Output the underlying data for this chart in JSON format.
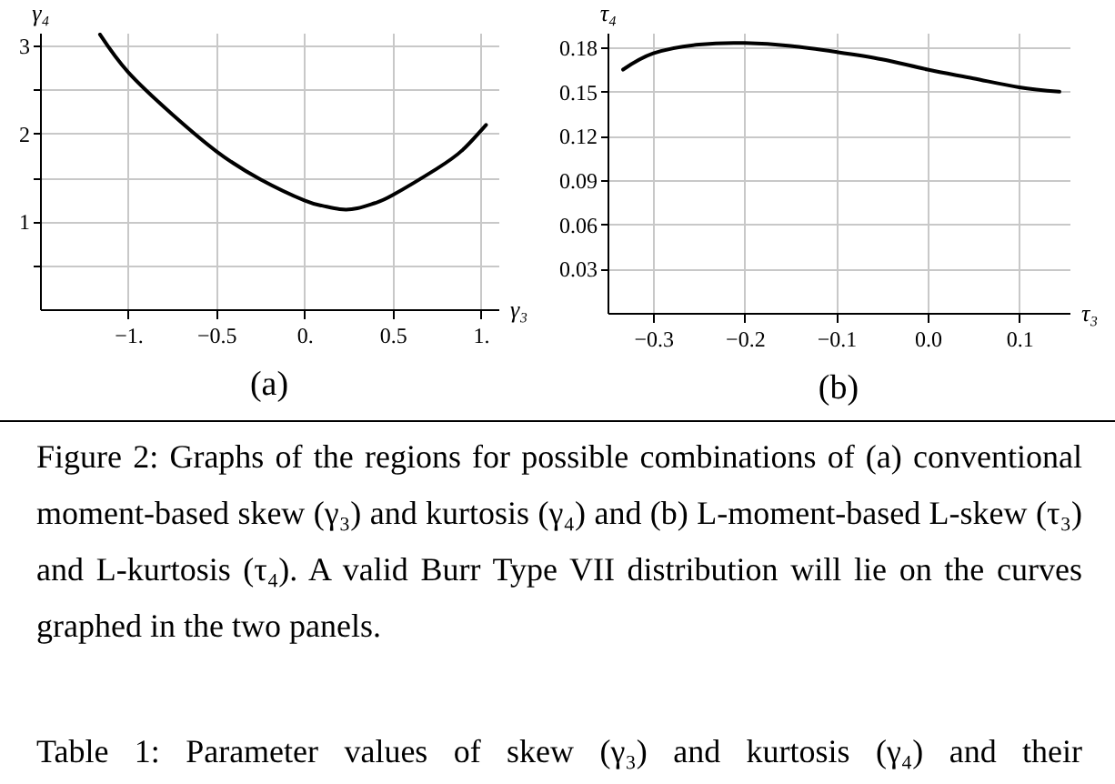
{
  "chart_data": [
    {
      "type": "line",
      "title": "(a)",
      "xlabel": "γ₃",
      "ylabel": "γ₄",
      "x": [
        -1.16,
        -1.0,
        -0.75,
        -0.5,
        -0.25,
        0.0,
        0.1,
        0.2,
        0.3,
        0.4,
        0.5,
        0.75,
        0.9,
        1.03
      ],
      "series": [
        {
          "color": "#000000",
          "values": [
            3.13,
            2.7,
            2.22,
            1.8,
            1.48,
            1.24,
            1.18,
            1.14,
            1.15,
            1.21,
            1.3,
            1.6,
            1.82,
            2.1
          ]
        }
      ],
      "xlim": [
        -1.5,
        1.1
      ],
      "xticks": [
        {
          "value": -1,
          "label": "−1."
        },
        {
          "value": -0.5,
          "label": "−0.5"
        },
        {
          "value": 0,
          "label": "0."
        },
        0.5,
        {
          "value": 1,
          "label": "1."
        }
      ],
      "ylim": [
        0,
        3.15
      ],
      "yticks": [
        {
          "value": 0.5,
          "label": null
        },
        1,
        {
          "value": 1.5,
          "label": null
        },
        2,
        {
          "value": 2.5,
          "label": null
        },
        3
      ],
      "grid": true,
      "annotations": [
        "Figure 2: Graphs of the regions for possible combinations of (a) conventional moment-based skew (γ₃) and kurtosis (γ₄) and (b) L-moment-based L-skew (τ₃) and L-kurtosis (τ₄). A valid Burr Type VII distribution will lie on the curves graphed in the two panels.",
        "Table 1: Parameter values of skew (γ₃) and kurtosis (γ₄) and their"
      ]
    },
    {
      "type": "line",
      "title": "(b)",
      "xlabel": "τ₃",
      "ylabel": "τ₄",
      "x": [
        -0.333,
        -0.3,
        -0.25,
        -0.2,
        -0.15,
        -0.1,
        -0.05,
        0.0,
        0.05,
        0.1,
        0.144
      ],
      "series": [
        {
          "color": "#000000",
          "values": [
            0.165,
            0.176,
            0.182,
            0.183,
            0.181,
            0.177,
            0.172,
            0.165,
            0.159,
            0.153,
            0.15
          ]
        }
      ],
      "xlim": [
        -0.35,
        0.155
      ],
      "xticks": [
        {
          "value": -0.3,
          "label": "−0.3"
        },
        {
          "value": -0.2,
          "label": "−0.2"
        },
        {
          "value": -0.1,
          "label": "−0.1"
        },
        {
          "value": 0,
          "label": "0.0"
        },
        0.1
      ],
      "ylim": [
        0,
        0.19
      ],
      "yticks": [
        0.03,
        0.06,
        0.09,
        0.12,
        0.15,
        0.18
      ],
      "grid": true
    }
  ]
}
